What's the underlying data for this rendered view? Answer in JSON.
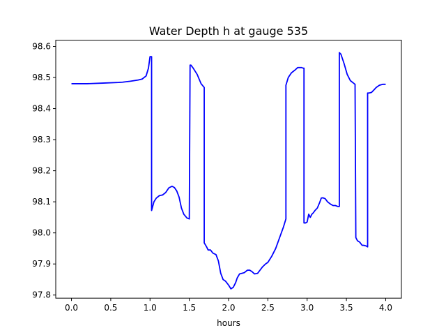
{
  "chart_data": {
    "type": "line",
    "title": "Water Depth h at gauge 535",
    "xlabel": "hours",
    "ylabel": "",
    "xlim": [
      -0.2,
      4.2
    ],
    "ylim": [
      97.79,
      98.62
    ],
    "grid": false,
    "colors": {
      "line": "#0000ff"
    },
    "x_ticks": [
      0.0,
      0.5,
      1.0,
      1.5,
      2.0,
      2.5,
      3.0,
      3.5,
      4.0
    ],
    "x_tick_labels": [
      "0.0",
      "0.5",
      "1.0",
      "1.5",
      "2.0",
      "2.5",
      "3.0",
      "3.5",
      "4.0"
    ],
    "y_ticks": [
      97.8,
      97.9,
      98.0,
      98.1,
      98.2,
      98.3,
      98.4,
      98.5,
      98.6
    ],
    "y_tick_labels": [
      "97.8",
      "97.9",
      "98.0",
      "98.1",
      "98.2",
      "98.3",
      "98.4",
      "98.5",
      "98.6"
    ],
    "series": [
      {
        "x": [
          0.0,
          0.2,
          0.4,
          0.6,
          0.65,
          0.75,
          0.85,
          0.9,
          0.95,
          0.98,
          1.0,
          1.02,
          1.02,
          1.05,
          1.08,
          1.12,
          1.16,
          1.2,
          1.24,
          1.28,
          1.31,
          1.34,
          1.37,
          1.4,
          1.43,
          1.47,
          1.5,
          1.51,
          1.52,
          1.55,
          1.6,
          1.65,
          1.69,
          1.69,
          1.72,
          1.74,
          1.77,
          1.8,
          1.84,
          1.87,
          1.9,
          1.93,
          1.96,
          2.0,
          2.03,
          2.06,
          2.09,
          2.11,
          2.14,
          2.17,
          2.2,
          2.24,
          2.27,
          2.3,
          2.33,
          2.37,
          2.4,
          2.43,
          2.47,
          2.5,
          2.55,
          2.6,
          2.65,
          2.7,
          2.73,
          2.73,
          2.76,
          2.8,
          2.85,
          2.88,
          2.93,
          2.95,
          2.96,
          2.96,
          2.98,
          3.0,
          3.02,
          3.04,
          3.06,
          3.08,
          3.1,
          3.13,
          3.16,
          3.18,
          3.2,
          3.23,
          3.26,
          3.3,
          3.33,
          3.36,
          3.39,
          3.41,
          3.41,
          3.43,
          3.47,
          3.51,
          3.55,
          3.6,
          3.61,
          3.62,
          3.64,
          3.67,
          3.7,
          3.72,
          3.75,
          3.77,
          3.77,
          3.79,
          3.82,
          3.85,
          3.88,
          3.92,
          3.96,
          4.0
        ],
        "values": [
          98.48,
          98.48,
          98.482,
          98.484,
          98.485,
          98.488,
          98.492,
          98.495,
          98.505,
          98.53,
          98.567,
          98.567,
          98.072,
          98.1,
          98.112,
          98.12,
          98.122,
          98.13,
          98.145,
          98.15,
          98.146,
          98.135,
          98.115,
          98.08,
          98.06,
          98.048,
          98.045,
          98.54,
          98.54,
          98.53,
          98.51,
          98.48,
          98.468,
          97.968,
          97.955,
          97.945,
          97.945,
          97.935,
          97.93,
          97.91,
          97.87,
          97.85,
          97.845,
          97.832,
          97.82,
          97.825,
          97.84,
          97.855,
          97.868,
          97.87,
          97.872,
          97.88,
          97.88,
          97.875,
          97.868,
          97.87,
          97.88,
          97.89,
          97.9,
          97.905,
          97.925,
          97.95,
          97.985,
          98.02,
          98.045,
          98.475,
          98.5,
          98.515,
          98.525,
          98.532,
          98.532,
          98.53,
          98.53,
          98.032,
          98.032,
          98.035,
          98.06,
          98.05,
          98.06,
          98.065,
          98.072,
          98.08,
          98.098,
          98.112,
          98.113,
          98.11,
          98.1,
          98.092,
          98.088,
          98.088,
          98.085,
          98.085,
          98.58,
          98.575,
          98.545,
          98.51,
          98.49,
          98.48,
          98.478,
          97.985,
          97.975,
          97.97,
          97.96,
          97.96,
          97.958,
          97.955,
          98.45,
          98.45,
          98.452,
          98.46,
          98.468,
          98.475,
          98.478,
          98.478
        ]
      }
    ]
  }
}
